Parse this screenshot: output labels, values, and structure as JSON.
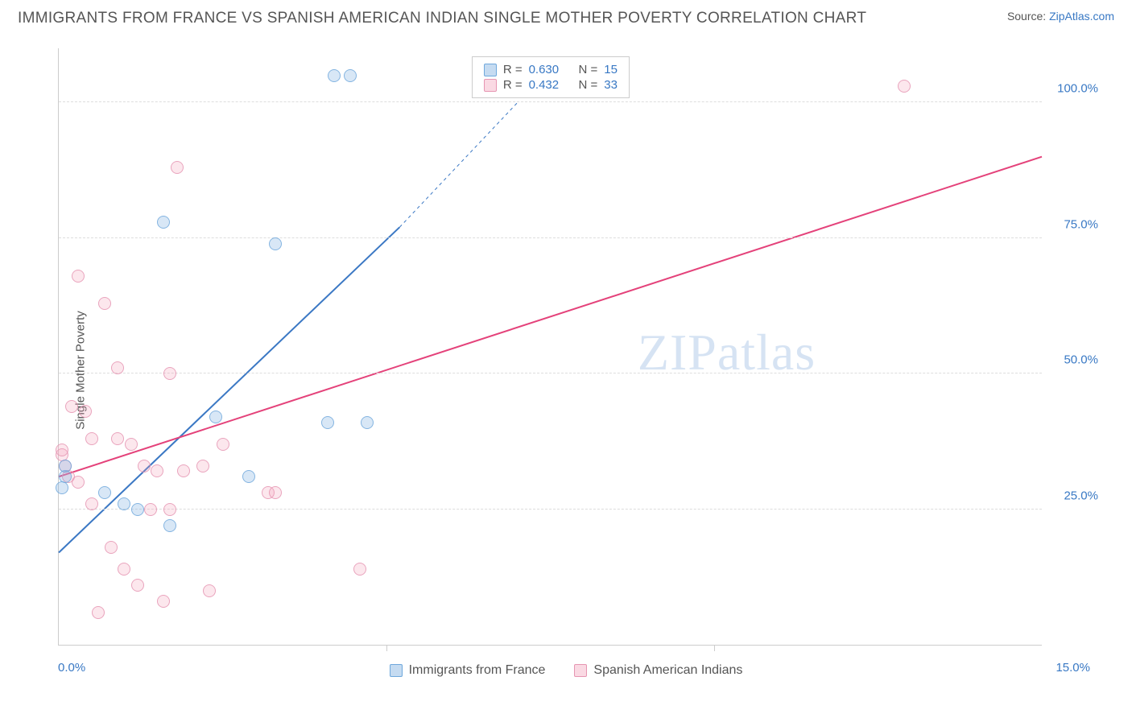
{
  "title": "IMMIGRANTS FROM FRANCE VS SPANISH AMERICAN INDIAN SINGLE MOTHER POVERTY CORRELATION CHART",
  "source_label": "Source: ",
  "source_name": "ZipAtlas.com",
  "y_axis_label": "Single Mother Poverty",
  "watermark": "ZIPatlas",
  "chart": {
    "type": "scatter",
    "xlim": [
      0,
      15
    ],
    "ylim": [
      0,
      110
    ],
    "x_ticks": [
      0,
      5,
      10
    ],
    "y_ticks": [
      25,
      50,
      75,
      100
    ],
    "x_tick_labels": {
      "min": "0.0%",
      "max": "15.0%"
    },
    "y_tick_labels": [
      "25.0%",
      "50.0%",
      "75.0%",
      "100.0%"
    ],
    "grid_color": "#dddddd",
    "background_color": "#ffffff",
    "marker_size": 16,
    "series": {
      "blue": {
        "label": "Immigrants from France",
        "color_fill": "rgba(127,176,225,0.35)",
        "color_stroke": "#6fa8dc",
        "R": "0.630",
        "N": "15",
        "trend": {
          "x1": 0,
          "y1": 17,
          "x2": 5.2,
          "y2": 77,
          "dash_x2": 7.0,
          "dash_y2": 100,
          "stroke": "#3b78c4",
          "width": 2
        },
        "points": [
          {
            "x": 0.05,
            "y": 29
          },
          {
            "x": 0.1,
            "y": 31
          },
          {
            "x": 0.1,
            "y": 33
          },
          {
            "x": 0.7,
            "y": 28
          },
          {
            "x": 1.0,
            "y": 26
          },
          {
            "x": 1.2,
            "y": 25
          },
          {
            "x": 1.7,
            "y": 22
          },
          {
            "x": 2.4,
            "y": 42
          },
          {
            "x": 2.9,
            "y": 31
          },
          {
            "x": 4.2,
            "y": 105
          },
          {
            "x": 4.45,
            "y": 105
          },
          {
            "x": 3.3,
            "y": 74
          },
          {
            "x": 1.6,
            "y": 78
          },
          {
            "x": 4.1,
            "y": 41
          },
          {
            "x": 4.7,
            "y": 41
          }
        ]
      },
      "pink": {
        "label": "Spanish American Indians",
        "color_fill": "rgba(242,160,186,0.30)",
        "color_stroke": "#e695b2",
        "R": "0.432",
        "N": "33",
        "trend": {
          "x1": 0,
          "y1": 31,
          "x2": 15,
          "y2": 90,
          "stroke": "#e4427a",
          "width": 2
        },
        "points": [
          {
            "x": 0.05,
            "y": 35
          },
          {
            "x": 0.1,
            "y": 33
          },
          {
            "x": 0.15,
            "y": 31
          },
          {
            "x": 0.2,
            "y": 44
          },
          {
            "x": 0.3,
            "y": 68
          },
          {
            "x": 0.3,
            "y": 30
          },
          {
            "x": 0.4,
            "y": 43
          },
          {
            "x": 0.5,
            "y": 38
          },
          {
            "x": 0.5,
            "y": 26
          },
          {
            "x": 0.6,
            "y": 6
          },
          {
            "x": 0.7,
            "y": 63
          },
          {
            "x": 0.8,
            "y": 18
          },
          {
            "x": 0.9,
            "y": 38
          },
          {
            "x": 0.9,
            "y": 51
          },
          {
            "x": 1.0,
            "y": 14
          },
          {
            "x": 1.1,
            "y": 37
          },
          {
            "x": 1.2,
            "y": 11
          },
          {
            "x": 1.3,
            "y": 33
          },
          {
            "x": 1.4,
            "y": 25
          },
          {
            "x": 1.5,
            "y": 32
          },
          {
            "x": 1.6,
            "y": 8
          },
          {
            "x": 1.7,
            "y": 25
          },
          {
            "x": 1.7,
            "y": 50
          },
          {
            "x": 1.8,
            "y": 88
          },
          {
            "x": 1.9,
            "y": 32
          },
          {
            "x": 2.2,
            "y": 33
          },
          {
            "x": 2.3,
            "y": 10
          },
          {
            "x": 2.5,
            "y": 37
          },
          {
            "x": 3.2,
            "y": 28
          },
          {
            "x": 3.3,
            "y": 28
          },
          {
            "x": 4.6,
            "y": 14
          },
          {
            "x": 12.9,
            "y": 103
          },
          {
            "x": 0.05,
            "y": 36
          }
        ]
      }
    }
  },
  "stats_legend": {
    "R_label": "R =",
    "N_label": "N ="
  }
}
